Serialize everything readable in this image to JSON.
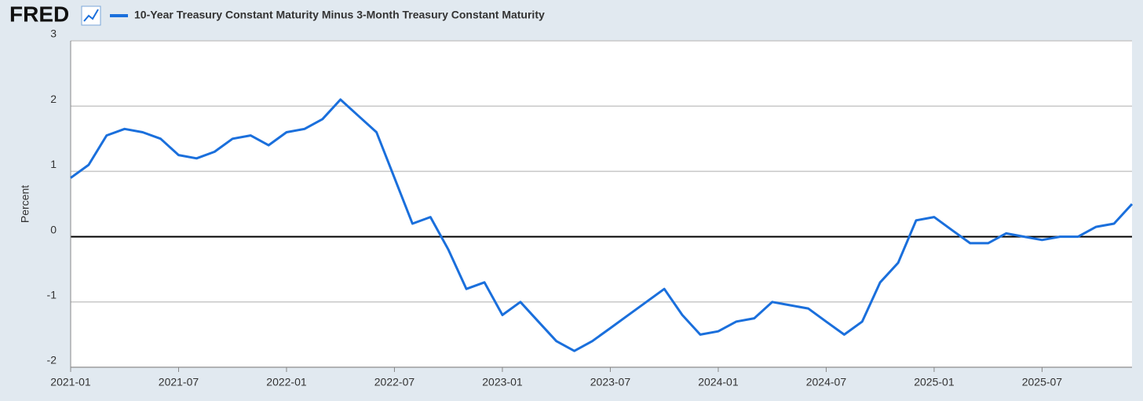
{
  "chart_data": {
    "type": "line",
    "source": "FRED",
    "title": "10-Year Treasury Constant Maturity Minus 3-Month Treasury Constant Maturity",
    "y_label": "Percent",
    "x": [
      "2021-01",
      "2021-02",
      "2021-03",
      "2021-04",
      "2021-05",
      "2021-06",
      "2021-07",
      "2021-08",
      "2021-09",
      "2021-10",
      "2021-11",
      "2021-12",
      "2022-01",
      "2022-02",
      "2022-03",
      "2022-04",
      "2022-05",
      "2022-06",
      "2022-07",
      "2022-08",
      "2022-09",
      "2022-10",
      "2022-11",
      "2022-12",
      "2023-01",
      "2023-02",
      "2023-03",
      "2023-04",
      "2023-05",
      "2023-06",
      "2023-07",
      "2023-08",
      "2023-09",
      "2023-10",
      "2023-11",
      "2023-12",
      "2024-01",
      "2024-02",
      "2024-03",
      "2024-04",
      "2024-05",
      "2024-06",
      "2024-07",
      "2024-08",
      "2024-09",
      "2024-10",
      "2024-11",
      "2024-12",
      "2025-01",
      "2025-02",
      "2025-03",
      "2025-04",
      "2025-05",
      "2025-06",
      "2025-07",
      "2025-08",
      "2025-09",
      "2025-10",
      "2025-11",
      "2025-12"
    ],
    "series": [
      {
        "name": "10-Year Treasury Constant Maturity Minus 3-Month Treasury Constant Maturity",
        "color": "#1a6fdc",
        "values": [
          0.9,
          1.1,
          1.55,
          1.65,
          1.6,
          1.5,
          1.25,
          1.2,
          1.3,
          1.5,
          1.55,
          1.4,
          1.6,
          1.65,
          1.8,
          2.1,
          1.85,
          1.6,
          0.9,
          0.2,
          0.3,
          -0.2,
          -0.8,
          -0.7,
          -1.2,
          -1.0,
          -1.3,
          -1.6,
          -1.75,
          -1.6,
          -1.4,
          -1.2,
          -1.0,
          -0.8,
          -1.2,
          -1.5,
          -1.45,
          -1.3,
          -1.25,
          -1.0,
          -1.05,
          -1.1,
          -1.3,
          -1.5,
          -1.3,
          -0.7,
          -0.4,
          0.25,
          0.3,
          0.1,
          -0.1,
          -0.1,
          0.05,
          0.0,
          -0.05,
          0.0,
          0.0,
          0.15,
          0.2,
          0.5
        ]
      }
    ],
    "xlim": [
      "2021-01",
      "2025-12"
    ],
    "xticks": [
      "2021-01",
      "2021-07",
      "2022-01",
      "2022-07",
      "2023-01",
      "2023-07",
      "2024-01",
      "2024-07",
      "2025-01",
      "2025-07"
    ],
    "ylim": [
      -2,
      3
    ],
    "yticks": [
      -2,
      -1,
      0,
      1,
      2,
      3
    ],
    "grid": true
  }
}
